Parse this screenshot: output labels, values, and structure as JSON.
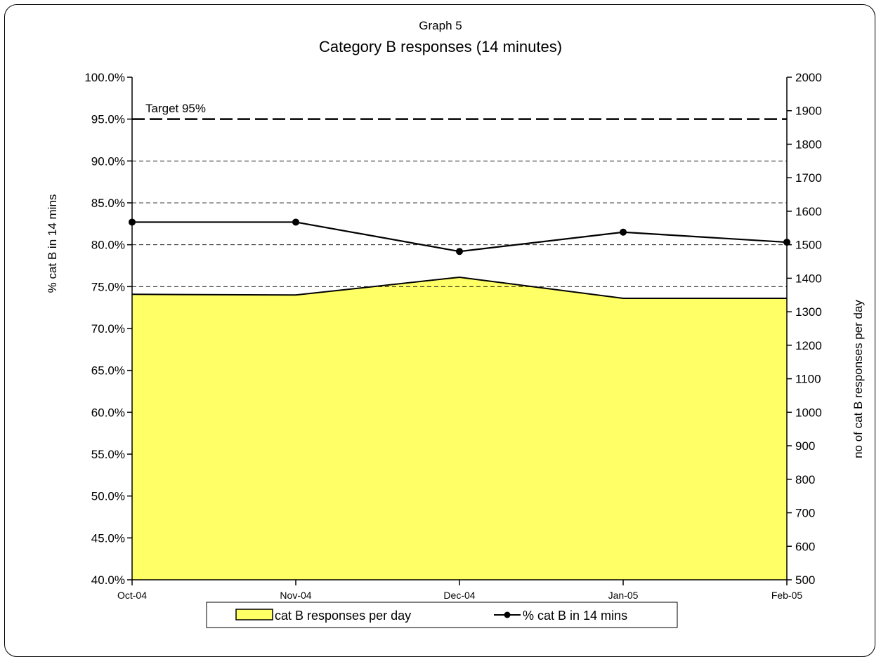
{
  "chart_data": {
    "type": "area",
    "supertitle": "Graph 5",
    "title": "Category B responses (14 minutes)",
    "categories": [
      "Oct-04",
      "Nov-04",
      "Dec-04",
      "Jan-05",
      "Feb-05"
    ],
    "ylabel_left": "% cat B in 14 mins",
    "ylabel_right": "no of cat B responses per day",
    "ylim_left": [
      40,
      100
    ],
    "ylim_right": [
      500,
      2000
    ],
    "yticks_left": [
      "40.0%",
      "45.0%",
      "50.0%",
      "55.0%",
      "60.0%",
      "65.0%",
      "70.0%",
      "75.0%",
      "80.0%",
      "85.0%",
      "90.0%",
      "95.0%",
      "100.0%"
    ],
    "yticks_right": [
      "500",
      "600",
      "700",
      "800",
      "900",
      "1000",
      "1100",
      "1200",
      "1300",
      "1400",
      "1500",
      "1600",
      "1700",
      "1800",
      "1900",
      "2000"
    ],
    "gridlines_left": [
      75,
      80,
      85,
      90
    ],
    "series": [
      {
        "name": "cat B responses per day",
        "type": "area",
        "axis": "right",
        "color": "#ffff66",
        "values": [
          1352,
          1350,
          1403,
          1340,
          1340
        ]
      },
      {
        "name": "% cat B in 14 mins",
        "type": "line",
        "axis": "left",
        "color": "#000000",
        "values": [
          82.7,
          82.7,
          79.2,
          81.5,
          80.3
        ]
      }
    ],
    "target": {
      "label": "Target 95%",
      "value": 95
    },
    "legend_position": "bottom"
  }
}
